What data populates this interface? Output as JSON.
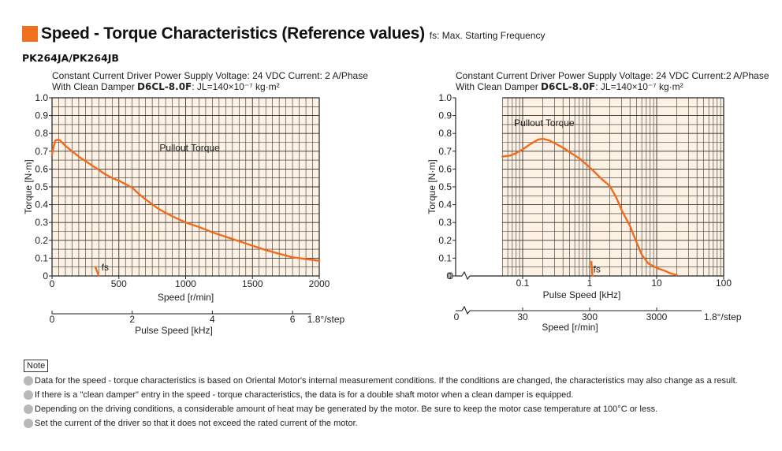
{
  "header": {
    "title": "Speed - Torque Characteristics (Reference values)",
    "subtitle": "fs: Max. Starting Frequency",
    "model": "PK264JA/PK264JB"
  },
  "colors": {
    "accent": "#f07020",
    "curve": "#f26a1b",
    "plot_bg": "#fdf1e3",
    "grid": "#333333"
  },
  "left_cond": {
    "line1": "Constant Current Driver    Power Supply Voltage: 24 VDC    Current: 2 A/Phase",
    "prefix": "With Clean Damper ",
    "damper": "D6CL-8.0F",
    "inertia": ": JL=140×10⁻⁷ kg·m²"
  },
  "right_cond": {
    "line1": "Constant Current Driver    Power Supply Voltage: 24 VDC    Current:2 A/Phase",
    "prefix": "With Clean Damper ",
    "damper": "D6CL-8.0F",
    "inertia": ": JL=140×10⁻⁷ kg·m²"
  },
  "note": {
    "label": "Note",
    "items": [
      "Data for the speed - torque characteristics is based on Oriental Motor's internal measurement conditions. If the conditions are changed, the characteristics may also change as a result.",
      "If there is a \"clean damper\" entry in the speed - torque characteristics, the data is for a double shaft motor when a clean damper is equipped.",
      "Depending on the driving conditions, a considerable amount of heat may be generated by the motor. Be sure to keep the motor case temperature at 100°C or less.",
      "Set the current of the driver so that it does not exceed the rated current of the motor."
    ]
  },
  "chart_data": [
    {
      "type": "line",
      "scale": "linear",
      "ylabel": "Torque [N·m]",
      "xlabel": "Speed [r/min]",
      "x2label": "Pulse Speed [kHz]",
      "x2_unit_label": "1.8°/step",
      "ylim": [
        0,
        1.0
      ],
      "xlim": [
        0,
        2000
      ],
      "y_ticks": [
        "0",
        "0.1",
        "0.2",
        "0.3",
        "0.4",
        "0.5",
        "0.6",
        "0.7",
        "0.8",
        "0.9",
        "1.0"
      ],
      "x_ticks": [
        "0",
        "500",
        "1000",
        "1500",
        "2000"
      ],
      "x2_ticks": [
        "0",
        "2",
        "4",
        "6"
      ],
      "x2_tick_values": [
        0,
        2,
        4,
        6
      ],
      "x2_max": 6.667,
      "grid": true,
      "series": [
        {
          "name": "Pullout Torque",
          "x": [
            0,
            10,
            25,
            45,
            60,
            100,
            150,
            200,
            250,
            300,
            350,
            400,
            450,
            500,
            550,
            600,
            650,
            700,
            800,
            900,
            1000,
            1100,
            1200,
            1300,
            1400,
            1500,
            1600,
            1700,
            1800,
            1900,
            2000
          ],
          "y": [
            0.68,
            0.72,
            0.76,
            0.765,
            0.76,
            0.73,
            0.7,
            0.67,
            0.645,
            0.62,
            0.595,
            0.57,
            0.55,
            0.535,
            0.515,
            0.495,
            0.46,
            0.43,
            0.375,
            0.335,
            0.3,
            0.275,
            0.245,
            0.22,
            0.195,
            0.17,
            0.145,
            0.125,
            0.105,
            0.095,
            0.085
          ]
        },
        {
          "name": "fs",
          "x": [
            325,
            350
          ],
          "y": [
            0.05,
            0.0
          ]
        }
      ]
    },
    {
      "type": "line",
      "scale": "log",
      "ylabel": "Torque [N·m]",
      "xlabel": "Pulse Speed [kHz]",
      "x2label": "Speed [r/min]",
      "x2_unit_label": "1.8°/step",
      "ylim": [
        0,
        1.0
      ],
      "xlim": [
        0.01,
        100
      ],
      "y_ticks": [
        "0",
        "0.1",
        "0.2",
        "0.3",
        "0.4",
        "0.5",
        "0.6",
        "0.7",
        "0.8",
        "0.9",
        "1.0"
      ],
      "x_ticks": [
        "0.1",
        "1",
        "10",
        "100"
      ],
      "x_tick_values": [
        0.1,
        1,
        10,
        100
      ],
      "x_origin_label": "0",
      "x2_ticks": [
        "30",
        "300",
        "3000"
      ],
      "x2_tick_values": [
        0.1,
        1,
        10
      ],
      "x2_origin_label": "0",
      "grid": true,
      "series": [
        {
          "name": "Pullout Torque",
          "x": [
            0.05,
            0.065,
            0.08,
            0.1,
            0.13,
            0.17,
            0.2,
            0.25,
            0.3,
            0.4,
            0.5,
            0.7,
            0.9,
            1.1,
            1.5,
            2.0,
            2.5,
            3.0,
            4.0,
            5.0,
            6.0,
            7.5,
            10.0,
            13.0,
            16.0,
            20.0
          ],
          "y": [
            0.67,
            0.675,
            0.69,
            0.71,
            0.74,
            0.765,
            0.77,
            0.76,
            0.745,
            0.72,
            0.695,
            0.66,
            0.625,
            0.595,
            0.545,
            0.505,
            0.44,
            0.37,
            0.28,
            0.19,
            0.12,
            0.07,
            0.045,
            0.03,
            0.015,
            0.005
          ]
        },
        {
          "name": "fs",
          "x": [
            1.06,
            1.1
          ],
          "y": [
            0.08,
            0.0
          ]
        }
      ]
    }
  ],
  "annotations": {
    "left_pullout": "Pullout Torque",
    "left_fs": "fs",
    "right_pullout": "Pullout Torque",
    "right_fs": "fs"
  }
}
